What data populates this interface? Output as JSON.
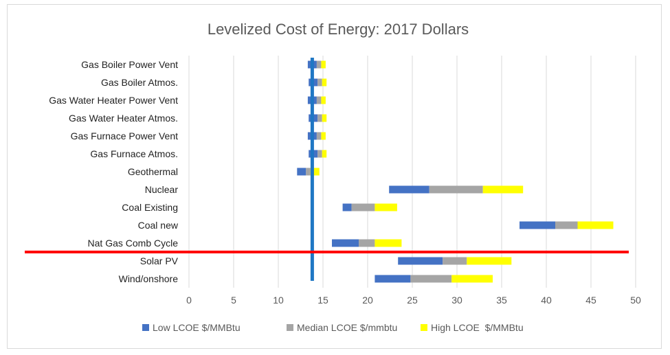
{
  "chart_data": {
    "type": "bar",
    "stacked": true,
    "orientation": "horizontal",
    "title": "Levelized Cost of Energy: 2017 Dollars",
    "xlabel": "",
    "ylabel": "",
    "xlim": [
      0,
      50
    ],
    "x_ticks": [
      "0",
      "5",
      "10",
      "15",
      "20",
      "25",
      "30",
      "35",
      "40",
      "45",
      "50"
    ],
    "grid": "vertical",
    "legend_position": "bottom",
    "categories": [
      "Gas Boiler Power Vent",
      "Gas Boiler Atmos.",
      "Gas Water Heater Power Vent",
      "Gas Water Heater Atmos.",
      "Gas Furnace Power Vent",
      "Gas Furnace Atmos.",
      "Geothermal",
      "Nuclear",
      "Coal Existing",
      "Coal new",
      "Nat Gas Comb Cycle",
      "Solar PV",
      "Wind/onshore"
    ],
    "start": [
      13.3,
      13.4,
      13.3,
      13.4,
      13.3,
      13.4,
      12.1,
      22.4,
      17.2,
      37.0,
      16.0,
      23.4,
      20.8
    ],
    "series": [
      {
        "name": "Low LCOE $/MMBtu",
        "color": "#4472c4",
        "values": [
          1.0,
          1.0,
          1.0,
          1.0,
          1.0,
          1.0,
          1.0,
          4.5,
          1.0,
          4.0,
          3.0,
          5.0,
          4.0
        ]
      },
      {
        "name": "Median LCOE $/mmbtu",
        "color": "#a5a5a5",
        "values": [
          0.5,
          0.5,
          0.5,
          0.5,
          0.5,
          0.5,
          0.5,
          6.0,
          2.6,
          2.5,
          1.8,
          2.7,
          4.6
        ]
      },
      {
        "name": "High LCOE  $/MMBtu",
        "color": "#ffff00",
        "values": [
          0.5,
          0.5,
          0.5,
          0.5,
          0.5,
          0.5,
          1.0,
          4.5,
          2.5,
          4.0,
          3.0,
          5.0,
          4.6
        ]
      }
    ],
    "annotations": [
      {
        "kind": "vertical-line",
        "x": 13.8,
        "color": "#1f77c4"
      },
      {
        "kind": "horizontal-line",
        "between": [
          "Nat Gas Comb Cycle",
          "Solar PV"
        ],
        "color": "#ff0000"
      }
    ]
  }
}
